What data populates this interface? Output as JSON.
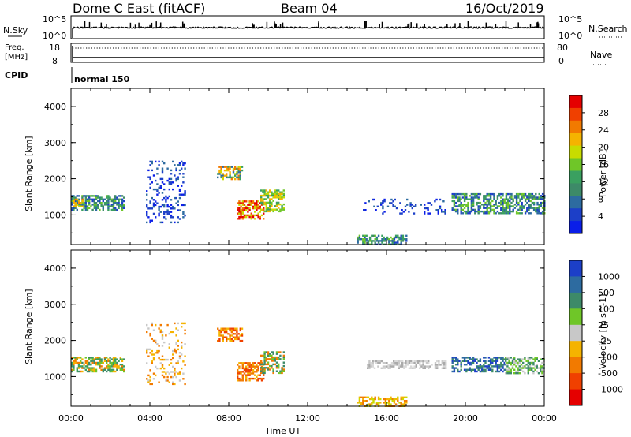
{
  "header": {
    "station": "Dome C East (fitACF)",
    "beam": "Beam 04",
    "date": "16/Oct/2019"
  },
  "top_panels": {
    "nsky_label": "N.Sky",
    "nsky_ticks": [
      "10^5",
      "10^0"
    ],
    "nsearch_label": "N.Search",
    "nsearch_ticks": [
      "10^5",
      "10^0"
    ],
    "freq_label": "Freq.",
    "freq_unit": "[MHz]",
    "freq_ticks": [
      "18",
      "8"
    ],
    "nave_label": "Nave",
    "nave_ticks": [
      "80",
      "0"
    ],
    "cpid_label": "CPID",
    "cpid_value": "normal 150"
  },
  "chart_data": [
    {
      "type": "heatmap",
      "title": "",
      "xlabel": "Time UT",
      "ylabel": "Slant Range [km]",
      "ylim": [
        180,
        4500
      ],
      "x_ticks": [
        "00:00",
        "04:00",
        "08:00",
        "12:00",
        "16:00",
        "20:00",
        "00:00"
      ],
      "y_ticks": [
        "1000",
        "2000",
        "3000",
        "4000"
      ],
      "colorbar": {
        "label": "Power [dB]",
        "ticks": [
          "28",
          "24",
          "20",
          "16",
          "12",
          "8",
          "4"
        ],
        "colors": [
          "#e50000",
          "#f04000",
          "#f27a00",
          "#f5b300",
          "#c8dc00",
          "#6fc628",
          "#3aa060",
          "#3d8a68",
          "#2d6ba0",
          "#1c3fc8",
          "#0a1ee8"
        ]
      },
      "echo_regions": [
        {
          "t0": 0.0,
          "t1": 2.7,
          "r0": 1150,
          "r1": 1550,
          "level": "green-blue"
        },
        {
          "t0": 0.1,
          "t1": 0.6,
          "r0": 1250,
          "r1": 1450,
          "level": "yellow-orange"
        },
        {
          "t0": 3.8,
          "t1": 5.8,
          "r0": 800,
          "r1": 2500,
          "level": "sparse blue"
        },
        {
          "t0": 7.4,
          "t1": 8.7,
          "r0": 2000,
          "r1": 2350,
          "level": "mixed"
        },
        {
          "t0": 8.4,
          "t1": 9.8,
          "r0": 900,
          "r1": 1400,
          "level": "red-orange"
        },
        {
          "t0": 9.6,
          "t1": 10.8,
          "r0": 1100,
          "r1": 1700,
          "level": "yellow-green"
        },
        {
          "t0": 14.5,
          "t1": 17.0,
          "r0": 200,
          "r1": 450,
          "level": "green-blue"
        },
        {
          "t0": 14.8,
          "t1": 19.0,
          "r0": 1050,
          "r1": 1450,
          "level": "sparse blue"
        },
        {
          "t0": 19.3,
          "t1": 24.0,
          "r0": 1050,
          "r1": 1600,
          "level": "green-blue"
        }
      ]
    },
    {
      "type": "heatmap",
      "title": "",
      "xlabel": "Time UT",
      "ylabel": "Slant Range [km]",
      "ylim": [
        180,
        4500
      ],
      "x_ticks": [
        "00:00",
        "04:00",
        "08:00",
        "12:00",
        "16:00",
        "20:00",
        "00:00"
      ],
      "y_ticks": [
        "1000",
        "2000",
        "3000",
        "4000"
      ],
      "colorbar": {
        "label": "Velocity [m s^-1]",
        "ticks": [
          "1000",
          "500",
          "100",
          "25",
          "-25",
          "-100",
          "-500",
          "-1000"
        ],
        "colors": [
          "#1c3fc8",
          "#2d6ba0",
          "#3d8a68",
          "#6fc628",
          "#c8c8c8",
          "#f5b300",
          "#f27a00",
          "#f04000",
          "#e50000"
        ]
      },
      "echo_regions": [
        {
          "t0": 0.0,
          "t1": 2.7,
          "r0": 1150,
          "r1": 1550,
          "level": "green/orange"
        },
        {
          "t0": 3.8,
          "t1": 5.8,
          "r0": 800,
          "r1": 2500,
          "level": "orange/grey"
        },
        {
          "t0": 7.4,
          "t1": 8.7,
          "r0": 2000,
          "r1": 2350,
          "level": "orange"
        },
        {
          "t0": 8.4,
          "t1": 9.8,
          "r0": 900,
          "r1": 1400,
          "level": "orange"
        },
        {
          "t0": 9.6,
          "t1": 10.8,
          "r0": 1100,
          "r1": 1700,
          "level": "green"
        },
        {
          "t0": 14.5,
          "t1": 17.0,
          "r0": 200,
          "r1": 450,
          "level": "yellow"
        },
        {
          "t0": 15.0,
          "t1": 19.0,
          "r0": 1250,
          "r1": 1450,
          "level": "grey"
        },
        {
          "t0": 19.3,
          "t1": 22.0,
          "r0": 1150,
          "r1": 1550,
          "level": "blue"
        },
        {
          "t0": 22.0,
          "t1": 24.0,
          "r0": 1100,
          "r1": 1550,
          "level": "grey/green"
        }
      ]
    }
  ]
}
